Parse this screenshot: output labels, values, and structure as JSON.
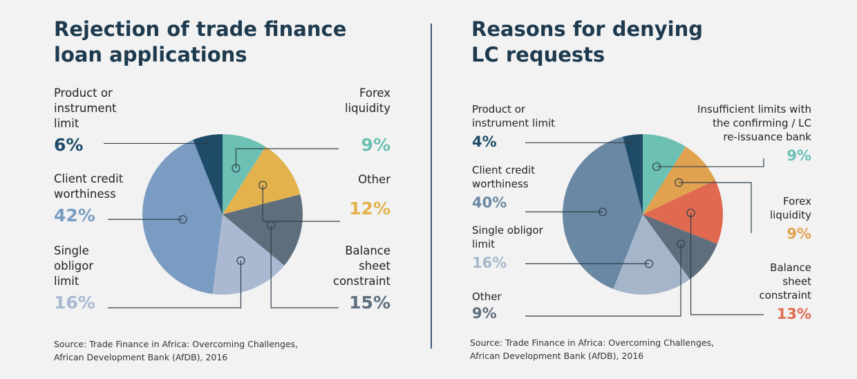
{
  "charts": [
    {
      "title_lines": [
        "Rejection of trade finance",
        "loan applications"
      ],
      "source_lines": [
        "Source: Trade Finance in Africa: Overcoming Challenges,",
        "African Development Bank (AfDB), 2016"
      ],
      "labels": [
        {
          "name": "Product or\ninstrument\nlimit",
          "pct": "6%",
          "color": "#1d4b68"
        },
        {
          "name": "Client credit\nworthiness",
          "pct": "42%",
          "color": "#7b9cc2"
        },
        {
          "name": "Single\nobligor\nlimit",
          "pct": "16%",
          "color": "#aab9d1"
        },
        {
          "name": "Forex\nliquidity",
          "pct": "9%",
          "color": "#6cc0b4"
        },
        {
          "name": "Other",
          "pct": "12%",
          "color": "#e3b24d"
        },
        {
          "name": "Balance\nsheet\nconstraint",
          "pct": "15%",
          "color": "#5f6e7c"
        }
      ]
    },
    {
      "title_lines": [
        "Reasons for denying",
        "LC requests"
      ],
      "source_lines": [
        "Source: Trade Finance in Africa: Overcoming Challenges,",
        "African Development Bank (AfDB), 2016"
      ],
      "labels": [
        {
          "name": "Product or\ninstrument limit",
          "pct": "4%",
          "color": "#1d4b68"
        },
        {
          "name": "Client credit\nworthiness",
          "pct": "40%",
          "color": "#6a88a3"
        },
        {
          "name": "Single obligor\nlimit",
          "pct": "16%",
          "color": "#a6b6ca"
        },
        {
          "name": "Other",
          "pct": "9%",
          "color": "#5f6e7c"
        },
        {
          "name": "Insufficient limits with\nthe confirming / LC\nre-issuance bank",
          "pct": "9%",
          "color": "#6cc0b4"
        },
        {
          "name": "Forex\nliquidity",
          "pct": "9%",
          "color": "#e1a24f"
        },
        {
          "name": "Balance\nsheet\nconstraint",
          "pct": "13%",
          "color": "#e06a4f"
        }
      ]
    }
  ],
  "chart_data": [
    {
      "type": "pie",
      "title": "Rejection of trade finance loan applications",
      "slices": [
        {
          "label": "Forex liquidity",
          "value": 9,
          "color": "#6cc0b4"
        },
        {
          "label": "Other",
          "value": 12,
          "color": "#e3b24d"
        },
        {
          "label": "Balance sheet constraint",
          "value": 15,
          "color": "#5f6e7c"
        },
        {
          "label": "Single obligor limit",
          "value": 16,
          "color": "#aab9d1"
        },
        {
          "label": "Client credit worthiness",
          "value": 42,
          "color": "#7b9cc2"
        },
        {
          "label": "Product or instrument limit",
          "value": 6,
          "color": "#1d4b68"
        }
      ]
    },
    {
      "type": "pie",
      "title": "Reasons for denying LC requests",
      "slices": [
        {
          "label": "Insufficient limits with the confirming / LC re-issuance bank",
          "value": 9,
          "color": "#6cc0b4"
        },
        {
          "label": "Forex liquidity",
          "value": 9,
          "color": "#e1a24f"
        },
        {
          "label": "Balance sheet constraint",
          "value": 13,
          "color": "#e06a4f"
        },
        {
          "label": "Other",
          "value": 9,
          "color": "#5f6e7c"
        },
        {
          "label": "Single obligor limit",
          "value": 16,
          "color": "#a6b6ca"
        },
        {
          "label": "Client credit worthiness",
          "value": 40,
          "color": "#6a88a3"
        },
        {
          "label": "Product or instrument limit",
          "value": 4,
          "color": "#1d4b68"
        }
      ]
    }
  ]
}
